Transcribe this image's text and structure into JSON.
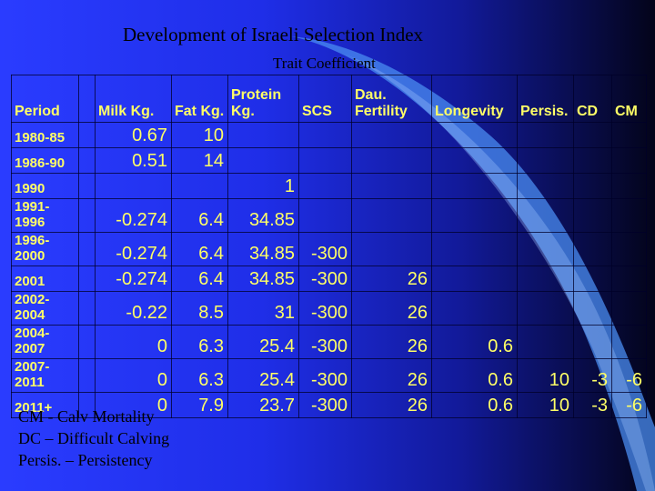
{
  "slide": {
    "title": "Development of Israeli Selection Index",
    "subtitle": "Trait Coefficient"
  },
  "table": {
    "headers": [
      "Period",
      "",
      "Milk Kg.",
      "Fat Kg.",
      "Protein Kg.",
      "SCS",
      "Dau. Fertility",
      "Longevity",
      "Persis.",
      "CD",
      "CM"
    ],
    "rows": [
      {
        "period": "1980-85",
        "values": [
          "",
          "0.67",
          "10",
          "",
          "",
          "",
          "",
          "",
          "",
          ""
        ]
      },
      {
        "period": "1986-90",
        "values": [
          "",
          "0.51",
          "14",
          "",
          "",
          "",
          "",
          "",
          "",
          ""
        ]
      },
      {
        "period": "1990",
        "values": [
          "",
          "",
          "",
          "1",
          "",
          "",
          "",
          "",
          "",
          ""
        ]
      },
      {
        "period": "1991-1996",
        "values": [
          "",
          "-0.274",
          "6.4",
          "34.85",
          "",
          "",
          "",
          "",
          "",
          ""
        ]
      },
      {
        "period": "1996-2000",
        "values": [
          "",
          "-0.274",
          "6.4",
          "34.85",
          "-300",
          "",
          "",
          "",
          "",
          ""
        ]
      },
      {
        "period": "2001",
        "values": [
          "",
          "-0.274",
          "6.4",
          "34.85",
          "-300",
          "26",
          "",
          "",
          "",
          ""
        ]
      },
      {
        "period": "2002-2004",
        "values": [
          "",
          "-0.22",
          "8.5",
          "31",
          "-300",
          "26",
          "",
          "",
          "",
          ""
        ]
      },
      {
        "period": "2004-2007",
        "values": [
          "",
          "0",
          "6.3",
          "25.4",
          "-300",
          "26",
          "0.6",
          "",
          "",
          ""
        ]
      },
      {
        "period": "2007-2011",
        "values": [
          "",
          "0",
          "6.3",
          "25.4",
          "-300",
          "26",
          "0.6",
          "10",
          "-3",
          "-6"
        ]
      },
      {
        "period": "2011+",
        "values": [
          "",
          "0",
          "7.9",
          "23.7",
          "-300",
          "26",
          "0.6",
          "10",
          "-3",
          "-6"
        ]
      }
    ]
  },
  "notes": [
    "CM  - Calv Mortality",
    "DC – Difficult Calving",
    "Persis. – Persistency"
  ],
  "colors": {
    "background_left": "#2a3cff",
    "background_right": "#03041a",
    "table_text": "#ffff66",
    "title_text": "#000000"
  }
}
